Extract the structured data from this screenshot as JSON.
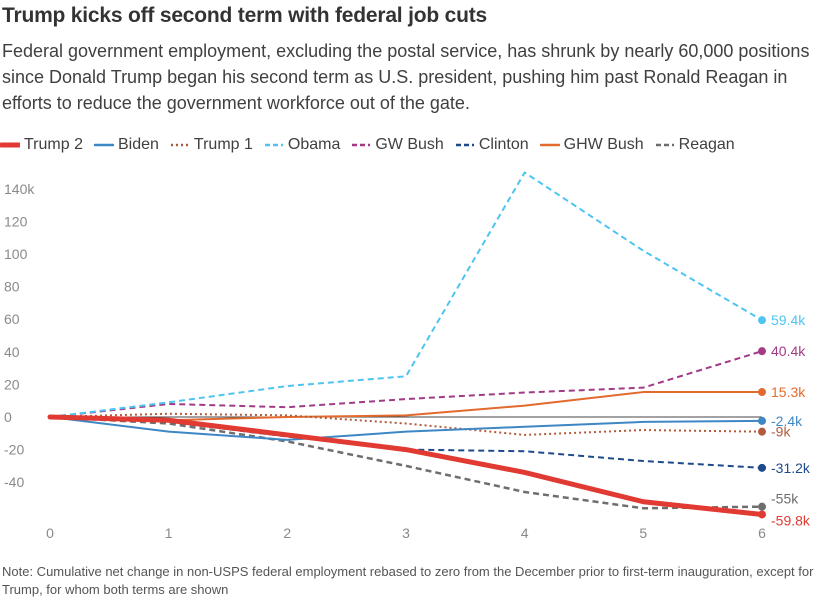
{
  "title": "Trump kicks off second term with federal job cuts",
  "subtitle": "Federal government employment, excluding the postal service, has shrunk by nearly 60,000 positions since Donald Trump began his second term as U.S. president, pushing him past Ronald Reagan in efforts to reduce the government workforce out of the gate.",
  "note": "Note: Cumulative net change in non-USPS federal employment rebased to zero from the December prior to first-term inauguration, except for Trump, for whom both terms are shown",
  "chart_data": {
    "type": "line",
    "title": "Trump kicks off second term with federal job cuts",
    "xlabel": "",
    "ylabel": "",
    "x": [
      0,
      1,
      2,
      3,
      4,
      5,
      6
    ],
    "xlim": [
      0,
      6
    ],
    "ylim": [
      -60,
      150
    ],
    "x_tick_labels": [
      "0",
      "1",
      "2",
      "3",
      "4",
      "5",
      "6"
    ],
    "y_ticks": [
      140,
      120,
      100,
      80,
      60,
      40,
      20,
      0,
      -20,
      -40
    ],
    "y_tick_labels": [
      "140k",
      "120",
      "100",
      "80",
      "60",
      "40",
      "20",
      "0",
      "-20",
      "-40"
    ],
    "series": [
      {
        "name": "Trump 2",
        "color": "#e03a32",
        "style": "solid",
        "width": 5,
        "values": [
          0,
          -2,
          -11,
          -20,
          -34,
          -52,
          -59.8
        ],
        "end_label": "-59.8k"
      },
      {
        "name": "Biden",
        "color": "#3d87c4",
        "style": "solid",
        "width": 2,
        "values": [
          0,
          -9,
          -14,
          -9,
          -6,
          -3,
          -2.4
        ],
        "end_label": "-2.4k"
      },
      {
        "name": "Trump 1",
        "color": "#b35a3c",
        "style": "dotted",
        "width": 2,
        "values": [
          0,
          2,
          1,
          -4,
          -11,
          -8,
          -9
        ],
        "end_label": "-9k"
      },
      {
        "name": "Obama",
        "color": "#4ec4f0",
        "style": "dashed",
        "width": 2,
        "values": [
          0,
          9,
          19,
          25,
          150,
          102,
          59.4
        ],
        "end_label": "59.4k"
      },
      {
        "name": "GW Bush",
        "color": "#a23a86",
        "style": "dashed",
        "width": 2,
        "values": [
          0,
          8,
          6,
          11,
          15,
          18,
          40.4
        ],
        "end_label": "40.4k"
      },
      {
        "name": "Clinton",
        "color": "#1e4a8c",
        "style": "dashed",
        "width": 2,
        "values": [
          0,
          -3,
          -12,
          -20,
          -21,
          -27,
          -31.2
        ],
        "end_label": "-31.2k"
      },
      {
        "name": "GHW Bush",
        "color": "#e26a2c",
        "style": "solid",
        "width": 2,
        "values": [
          0,
          -2,
          0,
          1,
          7,
          15.3,
          15.3
        ],
        "end_label": "15.3k"
      },
      {
        "name": "Reagan",
        "color": "#6e6e6e",
        "style": "dashed",
        "width": 2.5,
        "values": [
          0,
          -4,
          -15,
          -30,
          -46,
          -56,
          -55
        ],
        "end_label": "-55k"
      }
    ]
  }
}
